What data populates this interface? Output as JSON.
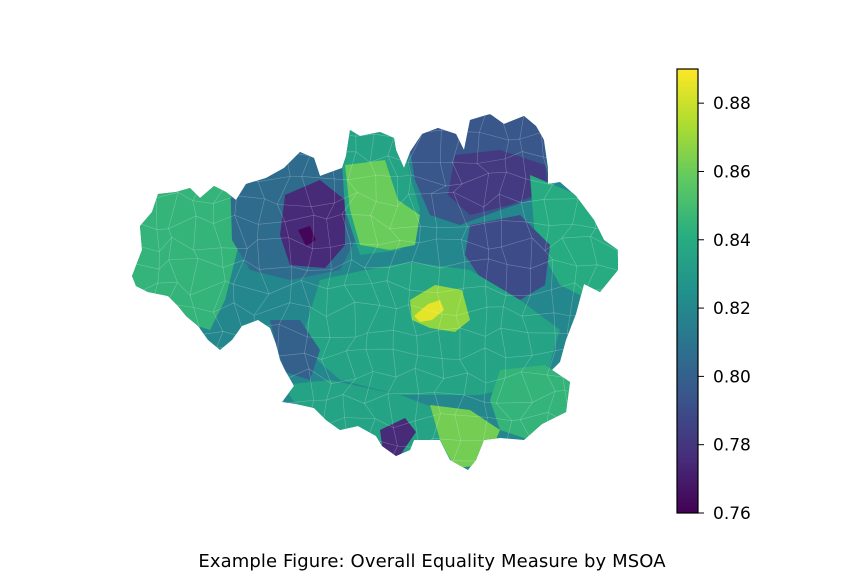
{
  "figure": {
    "caption": "Example Figure: Overall Equality Measure by MSOA"
  },
  "colorbar": {
    "colormap": "viridis",
    "min": 0.76,
    "max": 0.89,
    "ticks": [
      0.76,
      0.78,
      0.8,
      0.82,
      0.84,
      0.86,
      0.88
    ],
    "tick_labels": [
      "0.76",
      "0.78",
      "0.80",
      "0.82",
      "0.84",
      "0.86",
      "0.88"
    ]
  },
  "map": {
    "regions": "MSOA",
    "background_value": 0.82,
    "value_clusters": [
      {
        "area": "west",
        "value": 0.845
      },
      {
        "area": "north-west",
        "value": 0.805
      },
      {
        "area": "north-west-core",
        "value": 0.775
      },
      {
        "area": "north-west-dark-spot",
        "value": 0.762
      },
      {
        "area": "north-centre",
        "value": 0.835
      },
      {
        "area": "north-centre-light",
        "value": 0.86
      },
      {
        "area": "north-east",
        "value": 0.795
      },
      {
        "area": "north-east-core",
        "value": 0.782
      },
      {
        "area": "east",
        "value": 0.84
      },
      {
        "area": "east-inner",
        "value": 0.79
      },
      {
        "area": "centre-dark",
        "value": 0.765
      },
      {
        "area": "centre",
        "value": 0.835
      },
      {
        "area": "centre-hotspot",
        "value": 0.885
      },
      {
        "area": "centre-hotspot-edge",
        "value": 0.868
      },
      {
        "area": "south-west",
        "value": 0.8
      },
      {
        "area": "south",
        "value": 0.835
      },
      {
        "area": "south-light",
        "value": 0.862
      },
      {
        "area": "south-west-tip",
        "value": 0.775
      },
      {
        "area": "south-east",
        "value": 0.845
      }
    ]
  }
}
